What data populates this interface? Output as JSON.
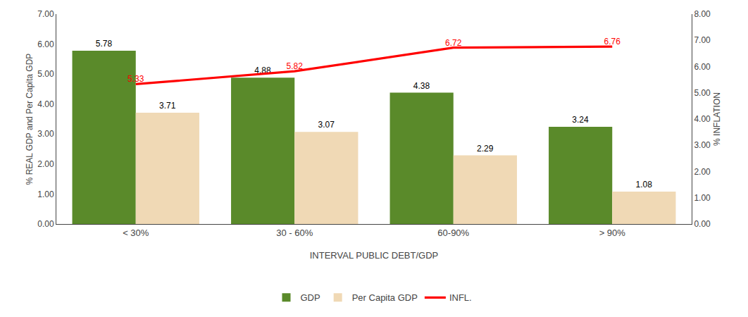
{
  "chart_data": {
    "type": "bar",
    "categories": [
      "< 30%",
      "30 - 60%",
      "60-90%",
      "> 90%"
    ],
    "xlabel": "INTERVAL PUBLIC DEBT/GDP",
    "ylabel": "% REAL GDP and Per Capita GDP",
    "y2label": "% INFLATION",
    "series": [
      {
        "name": "GDP",
        "color": "#5a8a2a",
        "values": [
          5.78,
          4.88,
          4.38,
          3.24
        ]
      },
      {
        "name": "Per Capita GDP",
        "color": "#f0d9b5",
        "values": [
          3.71,
          3.07,
          2.29,
          1.08
        ]
      },
      {
        "name": "INFL.",
        "type": "line",
        "axis": "y2",
        "color": "#ff0000",
        "values": [
          5.33,
          5.82,
          6.72,
          6.76
        ]
      }
    ],
    "ylim": [
      0,
      7.0
    ],
    "yticks": [
      {
        "value": 0,
        "label": "0.00"
      },
      {
        "value": 1,
        "label": "1.00"
      },
      {
        "value": 2,
        "label": "2.00"
      },
      {
        "value": 3,
        "label": "3.00"
      },
      {
        "value": 4,
        "label": "4.00"
      },
      {
        "value": 5,
        "label": "5.00"
      },
      {
        "value": 6,
        "label": "6.00"
      },
      {
        "value": 7,
        "label": "7.00"
      }
    ],
    "y2lim": [
      0,
      8.0
    ],
    "y2ticks": [
      {
        "value": 0,
        "label": "0.00"
      },
      {
        "value": 1,
        "label": "1.00"
      },
      {
        "value": 2,
        "label": "2.00"
      },
      {
        "value": 3,
        "label": "3.00"
      },
      {
        "value": 4,
        "label": "4.00"
      },
      {
        "value": 5,
        "label": "5.00"
      },
      {
        "value": 6,
        "label": "6.00"
      },
      {
        "value": 7,
        "label": "7.00"
      },
      {
        "value": 8,
        "label": "8.00"
      }
    ],
    "grid": false,
    "legend": "bottom",
    "data_labels": true
  }
}
